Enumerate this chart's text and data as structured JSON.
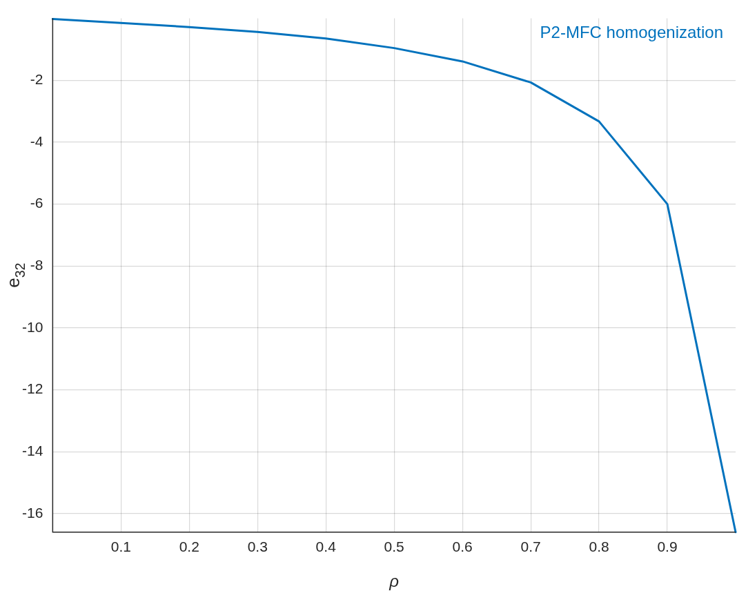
{
  "chart_data": {
    "type": "line",
    "xlabel": "ρ",
    "ylabel": "e$_{32}$",
    "x": [
      0,
      0.1,
      0.2,
      0.3,
      0.4,
      0.5,
      0.6,
      0.7,
      0.8,
      0.9,
      1.0
    ],
    "series": [
      {
        "name": "P2-MFC homogenization",
        "color": "#0072bd",
        "values": [
          -0.02,
          -0.15,
          -0.28,
          -0.44,
          -0.65,
          -0.96,
          -1.39,
          -2.07,
          -3.33,
          -6.0,
          -16.6
        ]
      }
    ],
    "xlim": [
      0,
      1
    ],
    "xticks": [
      0.1,
      0.2,
      0.3,
      0.4,
      0.5,
      0.6,
      0.7,
      0.8,
      0.9
    ],
    "ylim": [
      -16.6,
      0
    ],
    "yticks": [
      -16,
      -14,
      -12,
      -10,
      -8,
      -6,
      -4,
      -2
    ],
    "grid": true,
    "legend": "top right",
    "marker": "none",
    "line_style": "solid"
  }
}
